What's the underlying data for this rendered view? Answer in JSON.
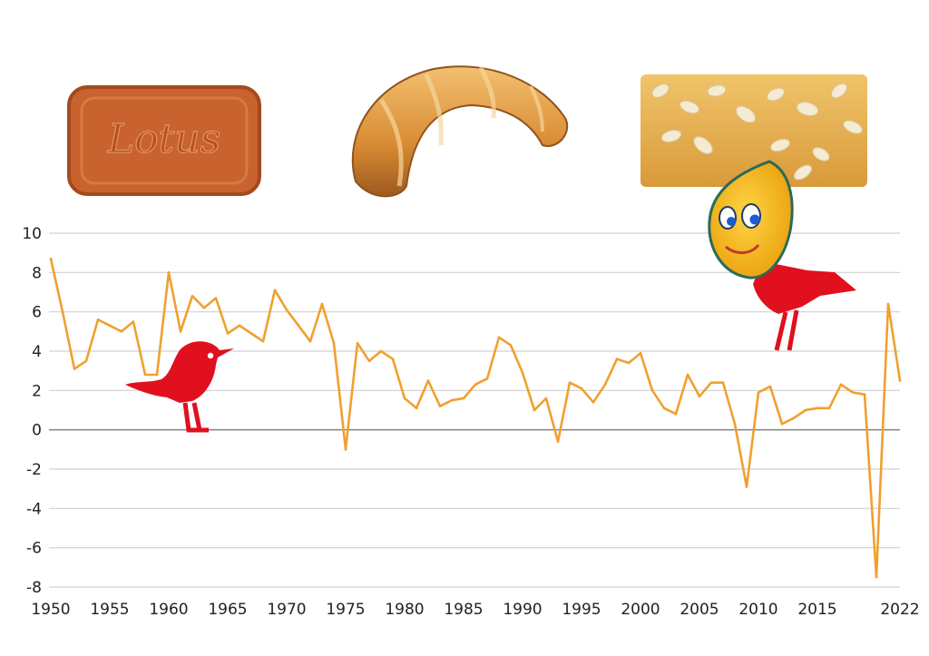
{
  "chart_data": {
    "type": "line",
    "title": "",
    "xlabel": "",
    "ylabel": "",
    "xlim": [
      1950,
      2022
    ],
    "ylim": [
      -8,
      10
    ],
    "grid": true,
    "x_ticks": [
      "1950",
      "1955",
      "1960",
      "1965",
      "1970",
      "1975",
      "1980",
      "1985",
      "1990",
      "1995",
      "2000",
      "2005",
      "2010",
      "2015",
      "2022"
    ],
    "y_ticks": [
      "10",
      "8",
      "6",
      "4",
      "2",
      "0",
      "-2",
      "-4",
      "-6",
      "-8"
    ],
    "series": [
      {
        "color": "#f0a030",
        "x": [
          1950,
          1951,
          1952,
          1953,
          1954,
          1955,
          1956,
          1957,
          1958,
          1959,
          1960,
          1961,
          1962,
          1963,
          1964,
          1965,
          1966,
          1967,
          1968,
          1969,
          1970,
          1971,
          1972,
          1973,
          1974,
          1975,
          1976,
          1977,
          1978,
          1979,
          1980,
          1981,
          1982,
          1983,
          1984,
          1985,
          1986,
          1987,
          1988,
          1989,
          1990,
          1991,
          1992,
          1993,
          1994,
          1995,
          1996,
          1997,
          1998,
          1999,
          2000,
          2001,
          2002,
          2003,
          2004,
          2005,
          2006,
          2007,
          2008,
          2009,
          2010,
          2011,
          2012,
          2013,
          2014,
          2015,
          2016,
          2017,
          2018,
          2019,
          2020,
          2021,
          2022
        ],
        "y": [
          8.7,
          6.0,
          3.1,
          3.5,
          5.6,
          5.3,
          5.0,
          5.5,
          2.8,
          2.8,
          8.0,
          5.0,
          6.8,
          6.2,
          6.7,
          4.9,
          5.3,
          4.9,
          4.5,
          7.1,
          6.1,
          5.3,
          4.5,
          6.4,
          4.4,
          -1.0,
          4.4,
          3.5,
          4.0,
          3.6,
          1.6,
          1.1,
          2.5,
          1.2,
          1.5,
          1.6,
          2.3,
          2.6,
          4.7,
          4.3,
          2.9,
          1.0,
          1.6,
          -0.6,
          2.4,
          2.1,
          1.4,
          2.3,
          3.6,
          3.4,
          3.9,
          2.0,
          1.1,
          0.8,
          2.8,
          1.7,
          2.4,
          2.4,
          0.3,
          -2.9,
          1.9,
          2.2,
          0.3,
          0.6,
          1.0,
          1.1,
          1.1,
          2.3,
          1.9,
          1.8,
          -7.5,
          6.4,
          2.5
        ]
      }
    ]
  },
  "images": {
    "biscuit_text": "Lotus",
    "biscuit_color": "#c8622e",
    "croissant_color": "#d48a3a",
    "cake_color": "#e7b256",
    "bird_color": "#e0101e",
    "mascot_color": "#f2b21a"
  }
}
